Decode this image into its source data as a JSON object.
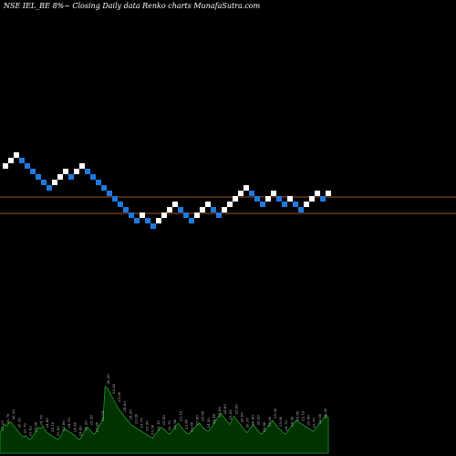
{
  "chart_data": {
    "type": "renko",
    "title": "NSE IEL_BE 8%~  Closing Daily data  Renko  charts MunafaSutra.com",
    "colors": {
      "background": "#000000",
      "up_brick": "#ffffff",
      "down_brick": "#1f7ae0",
      "reference_line": "#a0522d",
      "volume_fill": "#003300",
      "volume_stroke": "#1f9a2a"
    },
    "reference_lines": [
      "upper",
      "lower"
    ],
    "bricks": [
      {
        "dir": "up",
        "level": 14
      },
      {
        "dir": "up",
        "level": 15
      },
      {
        "dir": "up",
        "level": 16
      },
      {
        "dir": "down",
        "level": 15
      },
      {
        "dir": "down",
        "level": 14
      },
      {
        "dir": "down",
        "level": 13
      },
      {
        "dir": "down",
        "level": 12
      },
      {
        "dir": "down",
        "level": 11
      },
      {
        "dir": "down",
        "level": 10
      },
      {
        "dir": "up",
        "level": 11
      },
      {
        "dir": "up",
        "level": 12
      },
      {
        "dir": "up",
        "level": 13
      },
      {
        "dir": "down",
        "level": 12
      },
      {
        "dir": "up",
        "level": 13
      },
      {
        "dir": "up",
        "level": 14
      },
      {
        "dir": "down",
        "level": 13
      },
      {
        "dir": "down",
        "level": 12
      },
      {
        "dir": "down",
        "level": 11
      },
      {
        "dir": "down",
        "level": 10
      },
      {
        "dir": "down",
        "level": 9
      },
      {
        "dir": "down",
        "level": 8
      },
      {
        "dir": "down",
        "level": 7
      },
      {
        "dir": "down",
        "level": 6
      },
      {
        "dir": "down",
        "level": 5
      },
      {
        "dir": "down",
        "level": 4
      },
      {
        "dir": "up",
        "level": 5
      },
      {
        "dir": "down",
        "level": 4
      },
      {
        "dir": "down",
        "level": 3
      },
      {
        "dir": "up",
        "level": 4
      },
      {
        "dir": "up",
        "level": 5
      },
      {
        "dir": "up",
        "level": 6
      },
      {
        "dir": "up",
        "level": 7
      },
      {
        "dir": "down",
        "level": 6
      },
      {
        "dir": "down",
        "level": 5
      },
      {
        "dir": "down",
        "level": 4
      },
      {
        "dir": "up",
        "level": 5
      },
      {
        "dir": "up",
        "level": 6
      },
      {
        "dir": "up",
        "level": 7
      },
      {
        "dir": "down",
        "level": 6
      },
      {
        "dir": "down",
        "level": 5
      },
      {
        "dir": "up",
        "level": 6
      },
      {
        "dir": "up",
        "level": 7
      },
      {
        "dir": "up",
        "level": 8
      },
      {
        "dir": "up",
        "level": 9
      },
      {
        "dir": "up",
        "level": 10
      },
      {
        "dir": "down",
        "level": 9
      },
      {
        "dir": "down",
        "level": 8
      },
      {
        "dir": "down",
        "level": 7
      },
      {
        "dir": "up",
        "level": 8
      },
      {
        "dir": "up",
        "level": 9
      },
      {
        "dir": "down",
        "level": 8
      },
      {
        "dir": "down",
        "level": 7
      },
      {
        "dir": "up",
        "level": 8
      },
      {
        "dir": "down",
        "level": 7
      },
      {
        "dir": "down",
        "level": 6
      },
      {
        "dir": "up",
        "level": 7
      },
      {
        "dir": "up",
        "level": 8
      },
      {
        "dir": "up",
        "level": 9
      },
      {
        "dir": "down",
        "level": 8
      },
      {
        "dir": "up",
        "level": 9
      }
    ],
    "volume_labels": [
      "27.25",
      "26.79",
      "26.35",
      "26.10",
      "25.76",
      "25.42",
      "25.00",
      "24.76",
      "24.40",
      "24.10",
      "23.80",
      "23.80",
      "24.19",
      "24.40",
      "24.80",
      "25.20",
      "25.50",
      "25.80",
      "26.04",
      "26.50",
      "25.62",
      "25.00",
      "24.60",
      "24.20",
      "23.90",
      "23.70",
      "23.50",
      "23.30",
      "23.10",
      "22.90",
      "22.70",
      "22.90",
      "23.10",
      "23.40",
      "23.60",
      "23.80",
      "24.00",
      "24.20",
      "24.40",
      "24.60",
      "24.80",
      "25.20",
      "25.60",
      "26.00",
      "26.30",
      "26.60",
      "26.20",
      "25.90",
      "25.60",
      "25.30",
      "25.00",
      "24.70",
      "24.50",
      "24.80",
      "25.10",
      "25.40",
      "25.70",
      "26.00",
      "26.30"
    ],
    "volume_heights": [
      0.3,
      0.36,
      0.42,
      0.4,
      0.44,
      0.46,
      0.42,
      0.38,
      0.34,
      0.3,
      0.26,
      0.24,
      0.26,
      0.22,
      0.2,
      0.24,
      0.28,
      0.34,
      0.38,
      0.36,
      0.4,
      0.34,
      0.3,
      0.28,
      0.26,
      0.24,
      0.22,
      0.2,
      0.24,
      0.3,
      0.36,
      0.34,
      0.32,
      0.3,
      0.28,
      0.26,
      0.22,
      0.2,
      0.24,
      0.3,
      0.36,
      0.38,
      0.34,
      0.3,
      0.28,
      0.32,
      0.4,
      0.44,
      0.5,
      0.98,
      0.95,
      0.9,
      0.84,
      0.78,
      0.72,
      0.66,
      0.62,
      0.58,
      0.54,
      0.5,
      0.46,
      0.42,
      0.4,
      0.38,
      0.36,
      0.34,
      0.32,
      0.3,
      0.28,
      0.26,
      0.24,
      0.22,
      0.26,
      0.3,
      0.34,
      0.38,
      0.36,
      0.34,
      0.3,
      0.28,
      0.32,
      0.36,
      0.4,
      0.44,
      0.4,
      0.36,
      0.32,
      0.3,
      0.28,
      0.32,
      0.36,
      0.38,
      0.42,
      0.44,
      0.4,
      0.36,
      0.34,
      0.32,
      0.36,
      0.4,
      0.46,
      0.5,
      0.54,
      0.58,
      0.54,
      0.5,
      0.46,
      0.42,
      0.48,
      0.54,
      0.5,
      0.46,
      0.42,
      0.38,
      0.34,
      0.3,
      0.34,
      0.38,
      0.42,
      0.38,
      0.34,
      0.3,
      0.28,
      0.32,
      0.36,
      0.4,
      0.44,
      0.48,
      0.44,
      0.4,
      0.36,
      0.34,
      0.3,
      0.28,
      0.32,
      0.36,
      0.4,
      0.44,
      0.48,
      0.46,
      0.44,
      0.42,
      0.4,
      0.38,
      0.36,
      0.34,
      0.32,
      0.36,
      0.4,
      0.44,
      0.48,
      0.52,
      0.56,
      0.52
    ]
  }
}
